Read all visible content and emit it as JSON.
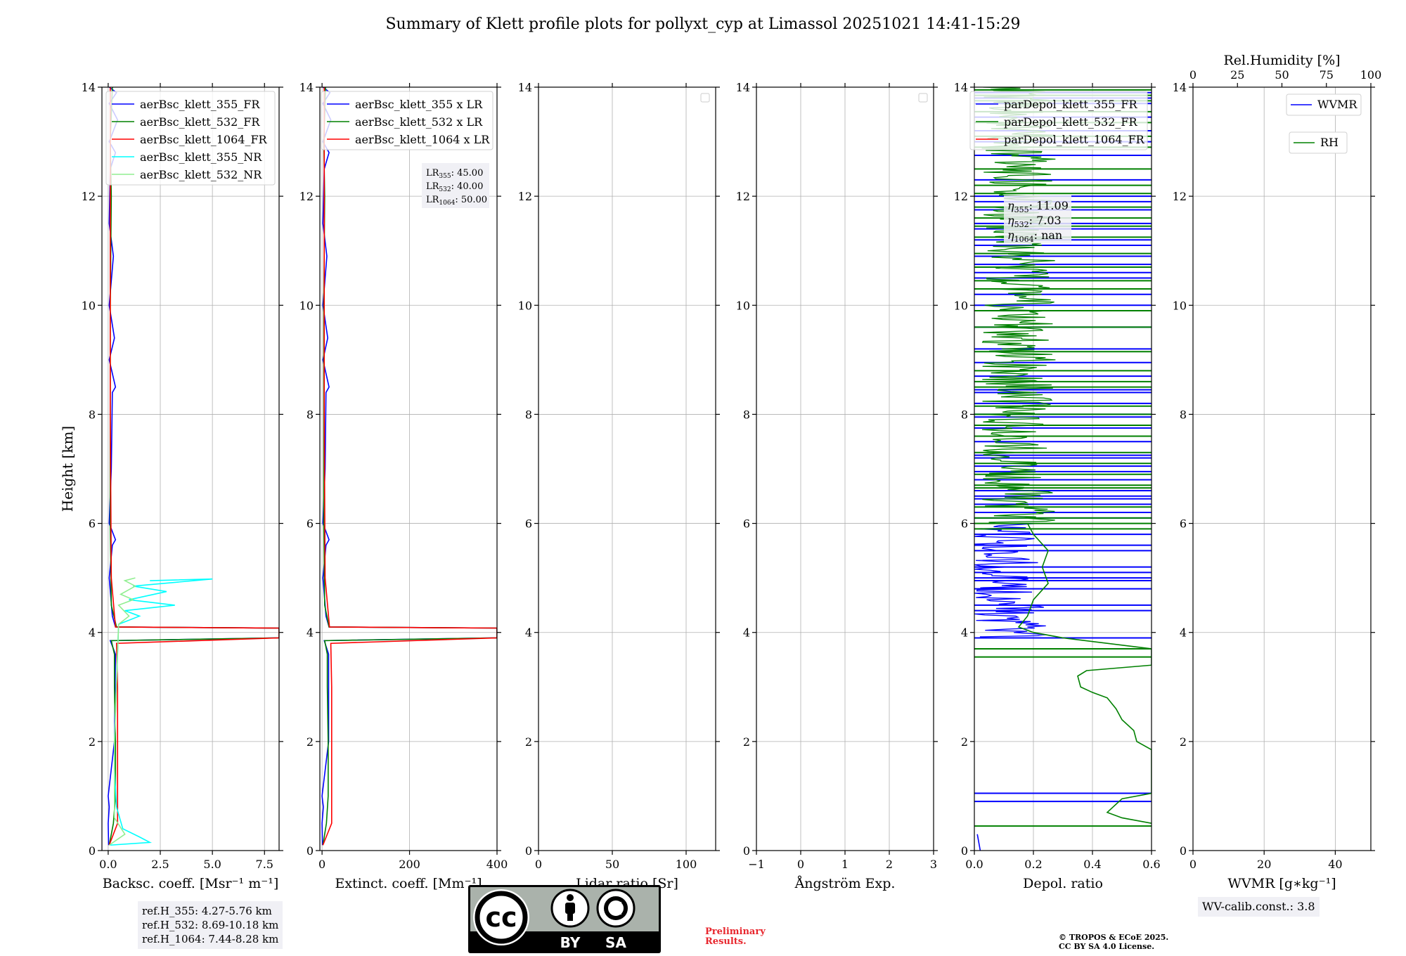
{
  "title": "Summary of Klett profile plots for pollyxt_cyp at Limassol 20251021 14:41-15:29",
  "ylabel": "Height [km]",
  "chart_data": [
    {
      "type": "line",
      "name": "backscatter",
      "xlabel": "Backsc. coeff. [Msr⁻¹ m⁻¹]",
      "xlim": [
        -0.3,
        8.2
      ],
      "ylim": [
        0,
        14
      ],
      "xticks": [
        0,
        2.5,
        5,
        7.5
      ],
      "xtick_labels": [
        "0.0",
        "2.5",
        "5.0",
        "7.5"
      ],
      "yticks": [
        0,
        2,
        4,
        6,
        8,
        10,
        12,
        14
      ],
      "legend": "top-right",
      "series": [
        {
          "name": "aerBsc_klett_355_FR",
          "color": "#0000ff",
          "points": [
            [
              0.02,
              0.1
            ],
            [
              0.0,
              0.5
            ],
            [
              0.05,
              0.8
            ],
            [
              0.0,
              1.0
            ],
            [
              0.3,
              2.0
            ],
            [
              0.35,
              3.6
            ],
            [
              0.1,
              3.85
            ],
            [
              8.2,
              3.9
            ],
            [
              8.2,
              4.08
            ],
            [
              0.35,
              4.1
            ],
            [
              0.2,
              4.3
            ],
            [
              0.05,
              5.0
            ],
            [
              0.2,
              5.6
            ],
            [
              0.35,
              5.7
            ],
            [
              0.05,
              6.0
            ],
            [
              0.15,
              7.0
            ],
            [
              0.2,
              8.4
            ],
            [
              0.35,
              8.5
            ],
            [
              0.05,
              9.0
            ],
            [
              0.3,
              9.4
            ],
            [
              0.05,
              10.0
            ],
            [
              0.25,
              10.9
            ],
            [
              0.05,
              11.5
            ],
            [
              0.1,
              12.5
            ],
            [
              0.35,
              12.8
            ],
            [
              0.05,
              13.0
            ],
            [
              0.45,
              13.4
            ],
            [
              0.05,
              13.7
            ],
            [
              0.4,
              13.9
            ],
            [
              0.05,
              14.0
            ]
          ]
        },
        {
          "name": "aerBsc_klett_532_FR",
          "color": "#008000",
          "points": [
            [
              0.05,
              0.1
            ],
            [
              0.25,
              0.5
            ],
            [
              0.35,
              1.0
            ],
            [
              0.35,
              2.0
            ],
            [
              0.3,
              3.0
            ],
            [
              0.3,
              3.6
            ],
            [
              0.15,
              3.85
            ],
            [
              8.2,
              3.9
            ],
            [
              8.2,
              4.08
            ],
            [
              0.4,
              4.1
            ],
            [
              0.15,
              4.5
            ],
            [
              0.1,
              6.0
            ],
            [
              0.1,
              8.0
            ],
            [
              0.1,
              10.0
            ],
            [
              0.15,
              12.0
            ],
            [
              0.1,
              13.0
            ],
            [
              0.2,
              14.0
            ]
          ]
        },
        {
          "name": "aerBsc_klett_1064_FR",
          "color": "#ff0000",
          "points": [
            [
              0.05,
              0.1
            ],
            [
              0.45,
              0.5
            ],
            [
              0.45,
              1.0
            ],
            [
              0.45,
              2.0
            ],
            [
              0.45,
              3.0
            ],
            [
              0.4,
              3.8
            ],
            [
              8.2,
              3.9
            ],
            [
              8.2,
              4.08
            ],
            [
              0.35,
              4.1
            ],
            [
              0.15,
              5.0
            ],
            [
              0.1,
              8.0
            ],
            [
              0.1,
              11.0
            ],
            [
              0.1,
              14.0
            ]
          ]
        },
        {
          "name": "aerBsc_klett_355_NR",
          "color": "#00ffff",
          "points": [
            [
              0.1,
              0.1
            ],
            [
              2.0,
              0.15
            ],
            [
              1.5,
              0.25
            ],
            [
              0.7,
              0.4
            ],
            [
              0.4,
              0.8
            ],
            [
              0.3,
              1.5
            ],
            [
              0.3,
              2.0
            ],
            [
              0.5,
              4.15
            ],
            [
              1.5,
              4.3
            ],
            [
              0.8,
              4.4
            ],
            [
              3.2,
              4.5
            ],
            [
              1.0,
              4.6
            ],
            [
              2.8,
              4.75
            ],
            [
              1.2,
              4.85
            ],
            [
              5.0,
              4.98
            ],
            [
              2.0,
              4.95
            ]
          ]
        },
        {
          "name": "aerBsc_klett_532_NR",
          "color": "#90ee90",
          "points": [
            [
              0.05,
              0.1
            ],
            [
              0.8,
              0.3
            ],
            [
              0.3,
              0.6
            ],
            [
              0.3,
              1.0
            ],
            [
              0.3,
              2.0
            ],
            [
              0.5,
              4.15
            ],
            [
              1.0,
              4.3
            ],
            [
              0.5,
              4.5
            ],
            [
              1.2,
              4.6
            ],
            [
              0.6,
              4.7
            ],
            [
              1.3,
              4.85
            ],
            [
              0.8,
              4.95
            ],
            [
              1.3,
              5.0
            ]
          ]
        }
      ]
    },
    {
      "type": "line",
      "name": "extinction",
      "xlabel": "Extinct. coeff. [Mm⁻¹]",
      "xlim": [
        -5,
        400
      ],
      "ylim": [
        0,
        14
      ],
      "xticks": [
        0,
        200,
        400
      ],
      "xtick_labels": [
        "0",
        "200",
        "400"
      ],
      "yticks": [
        0,
        2,
        4,
        6,
        8,
        10,
        12,
        14
      ],
      "legend": "top-right",
      "series": [
        {
          "name": "aerBsc_klett_355 x LR",
          "color": "#0000ff",
          "points": [
            [
              1,
              0.1
            ],
            [
              0,
              0.5
            ],
            [
              3,
              0.8
            ],
            [
              0,
              1.0
            ],
            [
              15,
              2.0
            ],
            [
              15,
              3.6
            ],
            [
              5,
              3.85
            ],
            [
              400,
              3.9
            ],
            [
              400,
              4.08
            ],
            [
              16,
              4.1
            ],
            [
              9,
              4.3
            ],
            [
              2,
              5.0
            ],
            [
              9,
              5.6
            ],
            [
              16,
              5.7
            ],
            [
              2,
              6.0
            ],
            [
              7,
              7.0
            ],
            [
              9,
              8.4
            ],
            [
              16,
              8.5
            ],
            [
              2,
              9.0
            ],
            [
              13,
              9.4
            ],
            [
              2,
              10.0
            ],
            [
              11,
              10.9
            ],
            [
              2,
              11.5
            ],
            [
              5,
              12.5
            ],
            [
              16,
              12.8
            ],
            [
              2,
              13.0
            ],
            [
              20,
              13.4
            ],
            [
              2,
              13.7
            ],
            [
              18,
              13.9
            ],
            [
              2,
              14.0
            ]
          ]
        },
        {
          "name": "aerBsc_klett_532 x LR",
          "color": "#008000",
          "points": [
            [
              2,
              0.1
            ],
            [
              10,
              0.5
            ],
            [
              14,
              1.0
            ],
            [
              14,
              2.0
            ],
            [
              12,
              3.0
            ],
            [
              12,
              3.6
            ],
            [
              6,
              3.85
            ],
            [
              400,
              3.9
            ],
            [
              400,
              4.08
            ],
            [
              16,
              4.1
            ],
            [
              6,
              4.5
            ],
            [
              4,
              6.0
            ],
            [
              4,
              8.0
            ],
            [
              4,
              10.0
            ],
            [
              6,
              12.0
            ],
            [
              4,
              13.0
            ],
            [
              8,
              14.0
            ]
          ]
        },
        {
          "name": "aerBsc_klett_1064 x LR",
          "color": "#ff0000",
          "points": [
            [
              2,
              0.1
            ],
            [
              22,
              0.5
            ],
            [
              22,
              1.0
            ],
            [
              22,
              2.0
            ],
            [
              22,
              3.0
            ],
            [
              20,
              3.8
            ],
            [
              400,
              3.9
            ],
            [
              400,
              4.08
            ],
            [
              17,
              4.1
            ],
            [
              7,
              5.0
            ],
            [
              5,
              8.0
            ],
            [
              5,
              11.0
            ],
            [
              5,
              14.0
            ]
          ]
        }
      ]
    },
    {
      "type": "line",
      "name": "lidar_ratio",
      "xlabel": "Lidar ratio [Sr]",
      "xlim": [
        0,
        120
      ],
      "ylim": [
        0,
        14
      ],
      "xticks": [
        0,
        50,
        100
      ],
      "xtick_labels": [
        "0",
        "50",
        "100"
      ],
      "yticks": [
        0,
        2,
        4,
        6,
        8,
        10,
        12,
        14
      ],
      "legend": "top-right",
      "series": []
    },
    {
      "type": "line",
      "name": "angstrom",
      "xlabel": "Ångström Exp.",
      "xlim": [
        -1,
        3
      ],
      "ylim": [
        0,
        14
      ],
      "xticks": [
        -1,
        0,
        1,
        2,
        3
      ],
      "xtick_labels": [
        "−1",
        "0",
        "1",
        "2",
        "3"
      ],
      "yticks": [
        0,
        2,
        4,
        6,
        8,
        10,
        12,
        14
      ],
      "legend": "top-right",
      "series": []
    },
    {
      "type": "line",
      "name": "depol",
      "xlabel": "Depol. ratio",
      "xlim": [
        0,
        0.6
      ],
      "ylim": [
        0,
        14
      ],
      "xticks": [
        0,
        0.2,
        0.4,
        0.6
      ],
      "xtick_labels": [
        "0.0",
        "0.2",
        "0.4",
        "0.6"
      ],
      "yticks": [
        0,
        2,
        4,
        6,
        8,
        10,
        12,
        14
      ],
      "legend": "top-right",
      "series": [
        {
          "name": "parDepol_klett_355_FR",
          "color": "#0000ff",
          "points": [
            [
              0.02,
              0.0
            ],
            [
              0.01,
              0.3
            ]
          ],
          "spikes_y": [
            0.9,
            1.05,
            3.9,
            4.4,
            4.5,
            4.8,
            4.95,
            5.0,
            5.1,
            5.2,
            5.5,
            5.6,
            5.8,
            6.1,
            6.2,
            6.35,
            6.45,
            6.5,
            6.6,
            6.8,
            6.95,
            7.05,
            7.2,
            7.25,
            7.5,
            7.75,
            7.95,
            8.0,
            8.2,
            8.4,
            8.45,
            8.7,
            8.95,
            9.2,
            9.6,
            10.0,
            10.2,
            10.5,
            10.6,
            10.75,
            10.9,
            11.1,
            11.2,
            11.4,
            11.5,
            11.75,
            11.9,
            12.0,
            12.3,
            12.75,
            13.0,
            13.2,
            13.45,
            13.7,
            13.8,
            13.9
          ],
          "noisy_range": [
            3.9,
            6.0
          ]
        },
        {
          "name": "parDepol_klett_532_FR",
          "color": "#008000",
          "points": [
            [
              0.6,
              0.5
            ],
            [
              0.5,
              0.6
            ],
            [
              0.45,
              0.7
            ],
            [
              0.47,
              0.8
            ],
            [
              0.5,
              0.95
            ],
            [
              0.6,
              1.05
            ],
            [
              0.6,
              1.85
            ],
            [
              0.55,
              2.0
            ],
            [
              0.54,
              2.2
            ],
            [
              0.5,
              2.4
            ],
            [
              0.48,
              2.6
            ],
            [
              0.45,
              2.8
            ],
            [
              0.4,
              2.9
            ],
            [
              0.36,
              3.0
            ],
            [
              0.35,
              3.2
            ],
            [
              0.38,
              3.3
            ],
            [
              0.6,
              3.4
            ],
            [
              0.6,
              3.55
            ],
            [
              0.6,
              3.7
            ],
            [
              0.3,
              3.9
            ],
            [
              0.2,
              4.0
            ],
            [
              0.15,
              4.1
            ],
            [
              0.18,
              4.3
            ],
            [
              0.2,
              4.6
            ],
            [
              0.25,
              4.9
            ],
            [
              0.23,
              5.2
            ],
            [
              0.25,
              5.5
            ],
            [
              0.2,
              5.8
            ],
            [
              0.18,
              6.0
            ]
          ],
          "spikes_y": [
            0.45,
            3.55,
            3.7,
            5.9,
            6.0,
            6.1,
            6.3,
            6.65,
            6.7,
            6.9,
            7.1,
            7.3,
            7.6,
            7.8,
            8.0,
            8.15,
            8.5,
            8.6,
            8.8,
            9.15,
            9.6,
            9.9,
            10.3,
            10.45,
            10.7,
            10.95,
            11.25,
            11.45,
            11.6,
            11.8,
            12.05,
            12.2,
            12.5,
            12.9,
            13.1,
            13.35,
            13.55,
            13.75,
            13.85,
            13.95
          ],
          "noisy_range": [
            6.0,
            14.0
          ]
        },
        {
          "name": "parDepol_klett_1064_FR",
          "color": "#ff0000",
          "points": []
        }
      ]
    },
    {
      "type": "line",
      "name": "wvmr",
      "xlabel": "WVMR [g∗kg⁻¹]",
      "top_xlabel": "Rel.Humidity [%]",
      "xlim": [
        0,
        50
      ],
      "ylim": [
        0,
        14
      ],
      "xticks": [
        0,
        20,
        40
      ],
      "xtick_labels": [
        "0",
        "20",
        "40"
      ],
      "top_xticks": [
        0,
        25,
        50,
        75,
        100
      ],
      "top_xtick_labels": [
        "0",
        "25",
        "50",
        "75",
        "100"
      ],
      "yticks": [
        0,
        2,
        4,
        6,
        8,
        10,
        12,
        14
      ],
      "legend": "top-right",
      "series": [
        {
          "name": "WVMR",
          "color": "#0000ff",
          "points": []
        },
        {
          "name": "RH",
          "color": "#008000",
          "points": []
        }
      ]
    }
  ],
  "annotations": {
    "lr": [
      "LR",
      "355",
      ": 45.00",
      "LR",
      "532",
      ": 40.00",
      "LR",
      "1064",
      ": 50.00"
    ],
    "eta": [
      "η",
      "355",
      ": 11.09",
      "η",
      "532",
      ": 7.03",
      "η",
      "1064",
      ": nan"
    ]
  },
  "refbox": {
    "line1": "ref.H_355: 4.27-5.76 km",
    "line2": "ref.H_532: 8.69-10.18 km",
    "line3": "ref.H_1064: 7.44-8.28 km"
  },
  "wvbox": {
    "text": "WV-calib.const.: 3.8"
  },
  "prelim": {
    "line1": "Preliminary",
    "line2": "Results."
  },
  "copyright": {
    "line1": "© TROPOS & ECoE 2025.",
    "line2": "CC BY SA 4.0 License."
  },
  "cclogo": {
    "cc": "cc",
    "by": "BY",
    "sa": "SA"
  }
}
